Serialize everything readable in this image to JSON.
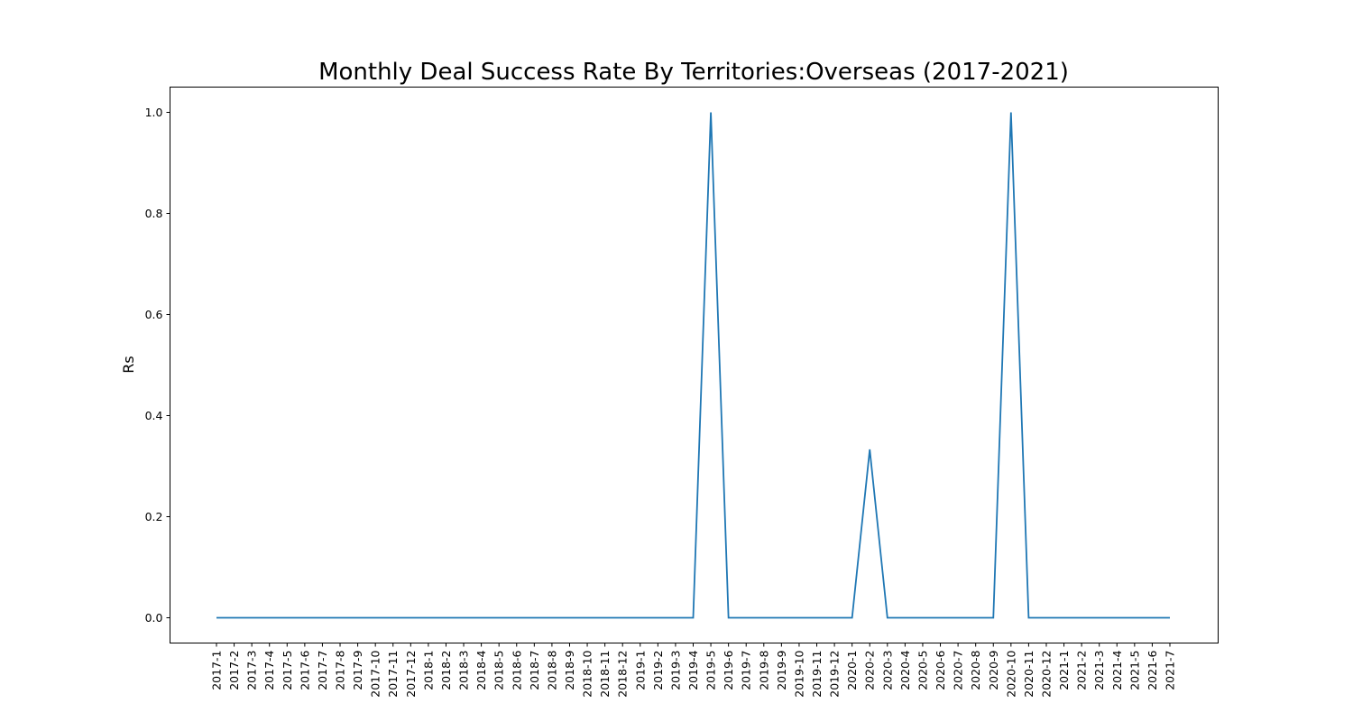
{
  "chart_data": {
    "type": "line",
    "title": "Monthly Deal Success Rate By Territories:Overseas (2017-2021)",
    "xlabel": "",
    "ylabel": "Rs",
    "ylim": [
      -0.05,
      1.05
    ],
    "yticks": [
      0.0,
      0.2,
      0.4,
      0.6,
      0.8,
      1.0
    ],
    "ytick_labels": [
      "0.0",
      "0.2",
      "0.4",
      "0.6",
      "0.8",
      "1.0"
    ],
    "grid": false,
    "legend": "none",
    "line_color": "#1f77b4",
    "categories": [
      "2017-1",
      "2017-2",
      "2017-3",
      "2017-4",
      "2017-5",
      "2017-6",
      "2017-7",
      "2017-8",
      "2017-9",
      "2017-10",
      "2017-11",
      "2017-12",
      "2018-1",
      "2018-2",
      "2018-3",
      "2018-4",
      "2018-5",
      "2018-6",
      "2018-7",
      "2018-8",
      "2018-9",
      "2018-10",
      "2018-11",
      "2018-12",
      "2019-1",
      "2019-2",
      "2019-3",
      "2019-4",
      "2019-5",
      "2019-6",
      "2019-7",
      "2019-8",
      "2019-9",
      "2019-10",
      "2019-11",
      "2019-12",
      "2020-1",
      "2020-2",
      "2020-3",
      "2020-4",
      "2020-5",
      "2020-6",
      "2020-7",
      "2020-8",
      "2020-9",
      "2020-10",
      "2020-11",
      "2020-12",
      "2021-1",
      "2021-2",
      "2021-3",
      "2021-4",
      "2021-5",
      "2021-6",
      "2021-7"
    ],
    "values": [
      0,
      0,
      0,
      0,
      0,
      0,
      0,
      0,
      0,
      0,
      0,
      0,
      0,
      0,
      0,
      0,
      0,
      0,
      0,
      0,
      0,
      0,
      0,
      0,
      0,
      0,
      0,
      0,
      1.0,
      0,
      0,
      0,
      0,
      0,
      0,
      0,
      0,
      0.333,
      0,
      0,
      0,
      0,
      0,
      0,
      0,
      1.0,
      0,
      0,
      0,
      0,
      0,
      0,
      0,
      0,
      0
    ]
  }
}
